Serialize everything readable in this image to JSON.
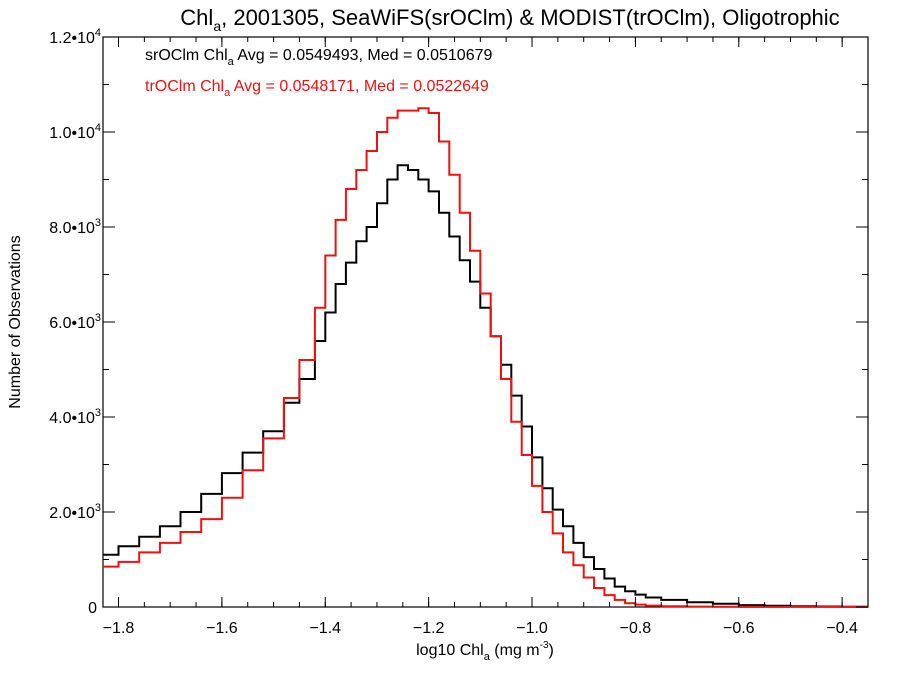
{
  "chart_data": {
    "type": "line",
    "title_main": "Chl",
    "title_sub": "a",
    "title_rest": ", 2001305, SeaWiFS(srOClm) & MODIST(trOClm), Oligotrophic",
    "xlabel_main": "log10 Chl",
    "xlabel_sub": "a",
    "xlabel_unit": " (mg m",
    "xlabel_sup": "-3",
    "xlabel_close": ")",
    "ylabel": "Number of Observations",
    "xlim": [
      -1.83,
      -0.35
    ],
    "ylim": [
      0,
      12000
    ],
    "x_ticks": [
      {
        "value": -1.8,
        "label": "−1.8"
      },
      {
        "value": -1.6,
        "label": "−1.6"
      },
      {
        "value": -1.4,
        "label": "−1.4"
      },
      {
        "value": -1.2,
        "label": "−1.2"
      },
      {
        "value": -1.0,
        "label": "−1.0"
      },
      {
        "value": -0.8,
        "label": "−0.8"
      },
      {
        "value": -0.6,
        "label": "−0.6"
      },
      {
        "value": -0.4,
        "label": "−0.4"
      }
    ],
    "y_ticks": [
      {
        "value": 0,
        "mant": "0",
        "exp": ""
      },
      {
        "value": 2000,
        "mant": "2.0•10",
        "exp": "3"
      },
      {
        "value": 4000,
        "mant": "4.0•10",
        "exp": "3"
      },
      {
        "value": 6000,
        "mant": "6.0•10",
        "exp": "3"
      },
      {
        "value": 8000,
        "mant": "8.0•10",
        "exp": "3"
      },
      {
        "value": 10000,
        "mant": "1.0•10",
        "exp": "4"
      },
      {
        "value": 12000,
        "mant": "1.2•10",
        "exp": "4"
      }
    ],
    "annotations": [
      {
        "pre": "srOClm Chl",
        "sub": "a",
        "post": " Avg = 0.0549493, Med = 0.0510679",
        "color": "#000000"
      },
      {
        "pre": "trOClm Chl",
        "sub": "a",
        "post": " Avg = 0.0548171, Med = 0.0522649",
        "color": "#ee1111"
      }
    ],
    "grid": false,
    "series": [
      {
        "color": "#000000",
        "x": [
          -1.83,
          -1.8,
          -1.76,
          -1.72,
          -1.68,
          -1.64,
          -1.6,
          -1.56,
          -1.52,
          -1.48,
          -1.45,
          -1.42,
          -1.4,
          -1.38,
          -1.36,
          -1.34,
          -1.32,
          -1.3,
          -1.28,
          -1.26,
          -1.24,
          -1.22,
          -1.2,
          -1.18,
          -1.16,
          -1.14,
          -1.12,
          -1.1,
          -1.08,
          -1.06,
          -1.04,
          -1.02,
          -1.0,
          -0.98,
          -0.96,
          -0.94,
          -0.92,
          -0.9,
          -0.88,
          -0.86,
          -0.84,
          -0.82,
          -0.8,
          -0.78,
          -0.75,
          -0.7,
          -0.65,
          -0.6,
          -0.55,
          -0.5,
          -0.45,
          -0.4,
          -0.35
        ],
        "y": [
          1100,
          1280,
          1480,
          1700,
          2000,
          2380,
          2820,
          3250,
          3700,
          4300,
          4800,
          5600,
          6200,
          6800,
          7250,
          7700,
          8000,
          8500,
          9000,
          9300,
          9200,
          9000,
          8750,
          8300,
          7800,
          7300,
          6850,
          6300,
          5700,
          5100,
          4450,
          3800,
          3150,
          2500,
          2050,
          1700,
          1350,
          1050,
          800,
          600,
          430,
          330,
          260,
          200,
          150,
          100,
          70,
          40,
          25,
          15,
          10,
          5,
          5
        ]
      },
      {
        "color": "#ee1111",
        "x": [
          -1.83,
          -1.8,
          -1.76,
          -1.72,
          -1.68,
          -1.64,
          -1.6,
          -1.56,
          -1.52,
          -1.48,
          -1.45,
          -1.42,
          -1.4,
          -1.38,
          -1.36,
          -1.34,
          -1.32,
          -1.3,
          -1.28,
          -1.26,
          -1.24,
          -1.22,
          -1.2,
          -1.18,
          -1.16,
          -1.14,
          -1.12,
          -1.1,
          -1.08,
          -1.06,
          -1.04,
          -1.02,
          -1.0,
          -0.98,
          -0.96,
          -0.94,
          -0.92,
          -0.9,
          -0.88,
          -0.86,
          -0.84,
          -0.82,
          -0.8,
          -0.78,
          -0.75,
          -0.7,
          -0.65,
          -0.6,
          -0.55,
          -0.5,
          -0.45,
          -0.4,
          -0.35
        ],
        "y": [
          850,
          950,
          1150,
          1350,
          1580,
          1850,
          2300,
          2880,
          3550,
          4400,
          5200,
          6300,
          7400,
          8150,
          8800,
          9200,
          9600,
          10000,
          10300,
          10450,
          10450,
          10500,
          10400,
          9800,
          9100,
          8300,
          7500,
          6600,
          5700,
          4800,
          3900,
          3200,
          2550,
          2000,
          1550,
          1150,
          880,
          620,
          400,
          250,
          150,
          80,
          50,
          30,
          15,
          8,
          5,
          3,
          2,
          2,
          2,
          2,
          2
        ]
      }
    ]
  }
}
